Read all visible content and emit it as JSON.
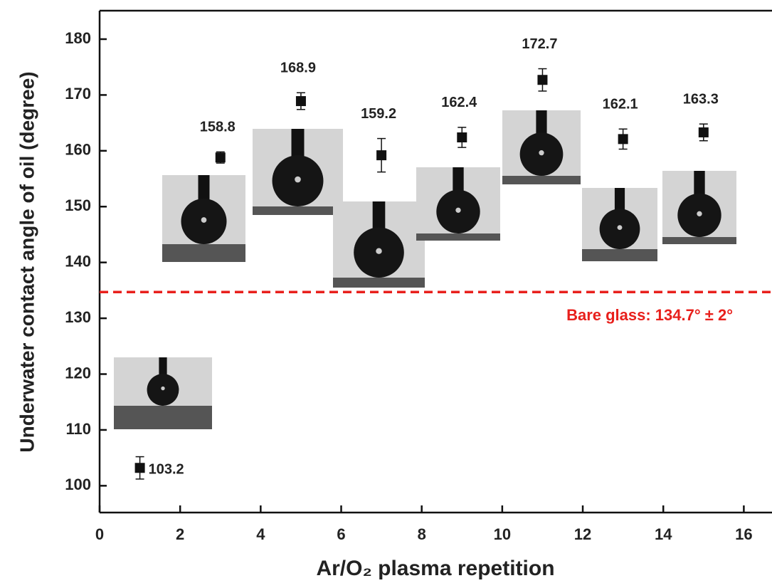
{
  "chart_data": {
    "type": "scatter",
    "x_label": "Ar/O₂ plasma repetition",
    "y_label": "Underwater contact angle of oil (degree)",
    "xlim": [
      0,
      16.7
    ],
    "ylim": [
      95.2,
      185.1
    ],
    "xticks": [
      0,
      2,
      4,
      6,
      8,
      10,
      12,
      14,
      16
    ],
    "yticks": [
      100,
      110,
      120,
      130,
      140,
      150,
      160,
      170,
      180
    ],
    "series": [
      {
        "color": "#111111",
        "x": [
          1,
          3,
          5,
          7,
          9,
          11,
          13,
          15
        ],
        "values": [
          103.2,
          158.8,
          168.9,
          159.2,
          162.4,
          172.7,
          162.1,
          163.3
        ],
        "errors": [
          2,
          1,
          1.5,
          3,
          1.8,
          2,
          1.8,
          1.5
        ]
      }
    ],
    "reference_line": {
      "value": 134.7,
      "color": "#e8201c",
      "label": "Bare glass: 134.7° ± 2°"
    }
  }
}
